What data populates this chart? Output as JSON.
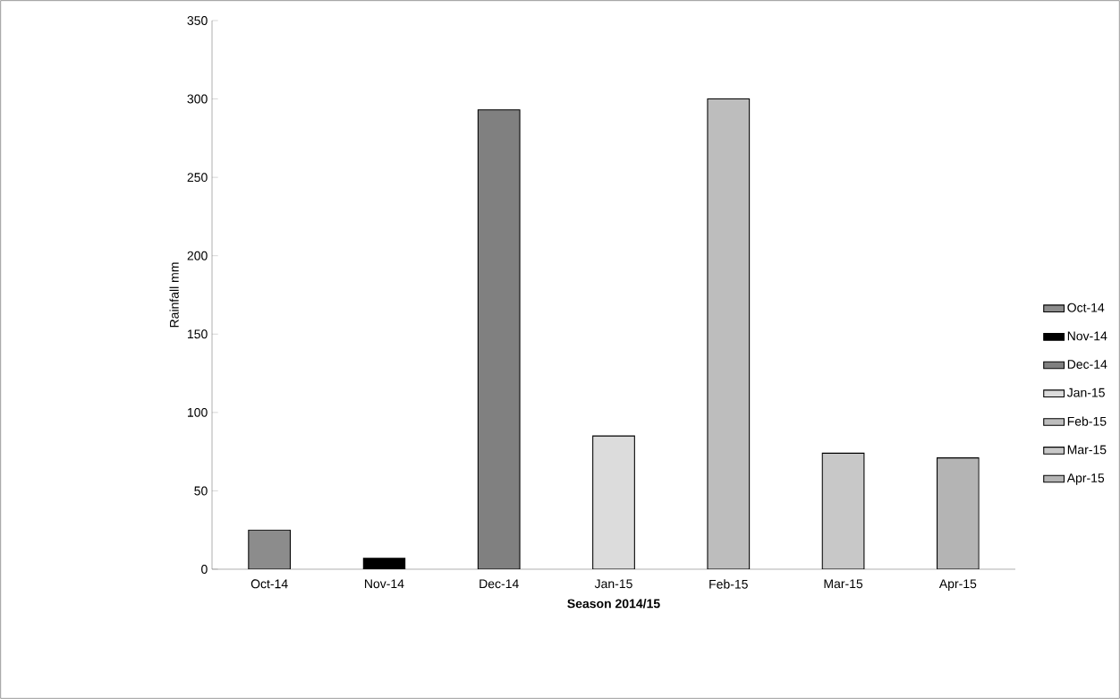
{
  "chart_data": {
    "type": "bar",
    "xlabel": "Season 2014/15",
    "ylabel": "Rainfall  mm",
    "categories": [
      "Oct-14",
      "Nov-14",
      "Dec-14",
      "Jan-15",
      "Feb-15",
      "Mar-15",
      "Apr-15"
    ],
    "series": [
      {
        "name": "Oct-14",
        "color": "#8c8c8c",
        "values": [
          25,
          null,
          null,
          null,
          null,
          null,
          null
        ]
      },
      {
        "name": "Nov-14",
        "color": "#000000",
        "values": [
          null,
          7,
          null,
          null,
          null,
          null,
          null
        ]
      },
      {
        "name": "Dec-14",
        "color": "#808080",
        "values": [
          null,
          null,
          293,
          null,
          null,
          null,
          null
        ]
      },
      {
        "name": "Jan-15",
        "color": "#dcdcdc",
        "values": [
          null,
          null,
          null,
          85,
          null,
          null,
          null
        ]
      },
      {
        "name": "Feb-15",
        "color": "#bdbdbd",
        "values": [
          null,
          null,
          null,
          null,
          300,
          null,
          null
        ]
      },
      {
        "name": "Mar-15",
        "color": "#c8c8c8",
        "values": [
          null,
          null,
          null,
          null,
          null,
          74,
          null
        ]
      },
      {
        "name": "Apr-15",
        "color": "#b4b4b4",
        "values": [
          null,
          null,
          null,
          null,
          null,
          null,
          71
        ]
      }
    ],
    "ylim": [
      0,
      350
    ],
    "yticks": [
      0,
      50,
      100,
      150,
      200,
      250,
      300,
      350
    ],
    "grid": false,
    "legend": "right"
  }
}
